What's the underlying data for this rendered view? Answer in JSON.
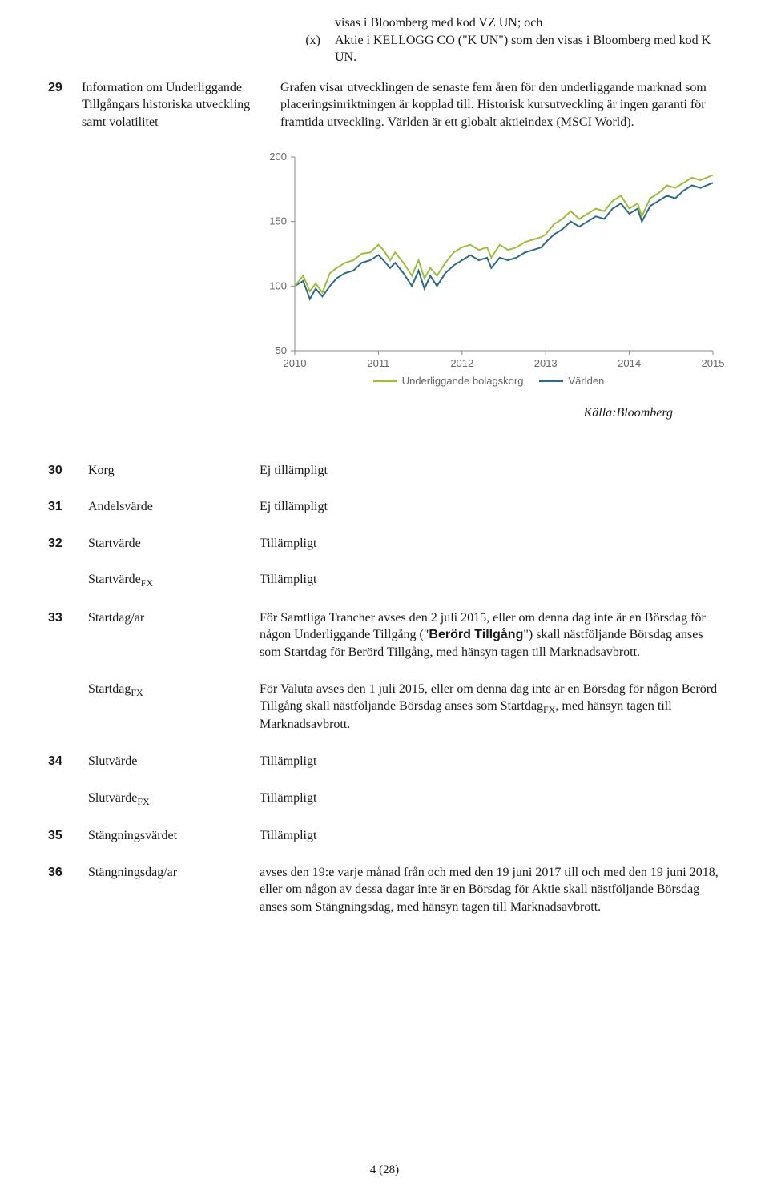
{
  "top": {
    "x_marker": "(x)",
    "line1": "visas i Bloomberg med kod VZ UN; och",
    "line2": "Aktie i KELLOGG CO (\"K UN\") som den visas i Bloomberg med kod K UN."
  },
  "row29": {
    "num": "29",
    "left": "Information om Underliggande Tillgångars historiska utveckling samt volatilitet",
    "right": "Grafen visar utvecklingen de senaste fem åren för den underliggande marknad som placeringsinriktningen är kopplad till. Historisk kursutveckling är ingen garanti för framtida utveckling. Världen är ett globalt aktieindex (MSCI World)."
  },
  "chart": {
    "ylim": [
      50,
      200
    ],
    "yticks": [
      50,
      100,
      150,
      200
    ],
    "xticks": [
      "2010",
      "2011",
      "2012",
      "2013",
      "2014",
      "2015"
    ],
    "series1_label": "Underliggande bolagskorg",
    "series2_label": "Världen",
    "series1_color": "#9bbf3b",
    "series2_color": "#2d6b85",
    "axis_color": "#888888",
    "tick_font": 13,
    "bg": "#ffffff",
    "line_width": 2,
    "series1": [
      [
        0,
        100
      ],
      [
        0.1,
        108
      ],
      [
        0.18,
        96
      ],
      [
        0.25,
        102
      ],
      [
        0.33,
        95
      ],
      [
        0.42,
        110
      ],
      [
        0.5,
        114
      ],
      [
        0.6,
        118
      ],
      [
        0.7,
        120
      ],
      [
        0.8,
        125
      ],
      [
        0.9,
        126
      ],
      [
        1.0,
        132
      ],
      [
        1.06,
        128
      ],
      [
        1.14,
        120
      ],
      [
        1.2,
        126
      ],
      [
        1.3,
        118
      ],
      [
        1.4,
        108
      ],
      [
        1.48,
        120
      ],
      [
        1.55,
        106
      ],
      [
        1.62,
        114
      ],
      [
        1.7,
        108
      ],
      [
        1.8,
        118
      ],
      [
        1.9,
        126
      ],
      [
        2.0,
        130
      ],
      [
        2.1,
        132
      ],
      [
        2.2,
        128
      ],
      [
        2.3,
        130
      ],
      [
        2.35,
        122
      ],
      [
        2.45,
        132
      ],
      [
        2.55,
        128
      ],
      [
        2.65,
        130
      ],
      [
        2.75,
        134
      ],
      [
        2.85,
        136
      ],
      [
        2.95,
        138
      ],
      [
        3.0,
        140
      ],
      [
        3.1,
        148
      ],
      [
        3.2,
        152
      ],
      [
        3.3,
        158
      ],
      [
        3.4,
        152
      ],
      [
        3.5,
        156
      ],
      [
        3.6,
        160
      ],
      [
        3.7,
        158
      ],
      [
        3.8,
        166
      ],
      [
        3.9,
        170
      ],
      [
        4.0,
        160
      ],
      [
        4.1,
        164
      ],
      [
        4.15,
        154
      ],
      [
        4.25,
        168
      ],
      [
        4.35,
        172
      ],
      [
        4.45,
        178
      ],
      [
        4.55,
        176
      ],
      [
        4.65,
        180
      ],
      [
        4.75,
        184
      ],
      [
        4.85,
        182
      ],
      [
        5.0,
        186
      ]
    ],
    "series2": [
      [
        0,
        100
      ],
      [
        0.1,
        104
      ],
      [
        0.18,
        90
      ],
      [
        0.25,
        98
      ],
      [
        0.33,
        92
      ],
      [
        0.42,
        100
      ],
      [
        0.5,
        106
      ],
      [
        0.6,
        110
      ],
      [
        0.7,
        112
      ],
      [
        0.8,
        118
      ],
      [
        0.9,
        120
      ],
      [
        1.0,
        124
      ],
      [
        1.06,
        120
      ],
      [
        1.14,
        114
      ],
      [
        1.2,
        118
      ],
      [
        1.3,
        110
      ],
      [
        1.4,
        100
      ],
      [
        1.48,
        112
      ],
      [
        1.55,
        98
      ],
      [
        1.62,
        108
      ],
      [
        1.7,
        100
      ],
      [
        1.8,
        110
      ],
      [
        1.9,
        116
      ],
      [
        2.0,
        120
      ],
      [
        2.1,
        124
      ],
      [
        2.2,
        120
      ],
      [
        2.3,
        122
      ],
      [
        2.35,
        114
      ],
      [
        2.45,
        122
      ],
      [
        2.55,
        120
      ],
      [
        2.65,
        122
      ],
      [
        2.75,
        126
      ],
      [
        2.85,
        128
      ],
      [
        2.95,
        130
      ],
      [
        3.0,
        134
      ],
      [
        3.1,
        140
      ],
      [
        3.2,
        144
      ],
      [
        3.3,
        150
      ],
      [
        3.4,
        146
      ],
      [
        3.5,
        150
      ],
      [
        3.6,
        154
      ],
      [
        3.7,
        152
      ],
      [
        3.8,
        160
      ],
      [
        3.9,
        164
      ],
      [
        4.0,
        156
      ],
      [
        4.1,
        160
      ],
      [
        4.15,
        150
      ],
      [
        4.25,
        162
      ],
      [
        4.35,
        166
      ],
      [
        4.45,
        170
      ],
      [
        4.55,
        168
      ],
      [
        4.65,
        174
      ],
      [
        4.75,
        178
      ],
      [
        4.85,
        176
      ],
      [
        5.0,
        180
      ]
    ]
  },
  "source": "Källa:Bloomberg",
  "rows": {
    "r30": {
      "n": "30",
      "l": "Korg",
      "v": "Ej tillämpligt"
    },
    "r31": {
      "n": "31",
      "l": "Andelsvärde",
      "v": "Ej tillämpligt"
    },
    "r32": {
      "n": "32",
      "l": "Startvärde",
      "v": "Tillämpligt"
    },
    "r32b": {
      "l": "Startvärde",
      "sub": "FX",
      "v": "Tillämpligt"
    },
    "r33": {
      "n": "33",
      "l": "Startdag/ar",
      "v": "För Samtliga Trancher avses den 2 juli 2015, eller om denna dag inte är en Börsdag för någon Underliggande Tillgång (\"",
      "bold": "Berörd Tillgång",
      "v2": "\") skall nästföljande Börsdag anses som Startdag för Berörd Tillgång, med hänsyn tagen till Marknadsavbrott."
    },
    "r33b": {
      "l": "Startdag",
      "sub": "FX",
      "v": "För Valuta avses den 1 juli 2015, eller om denna dag inte är en Börsdag för någon Berörd Tillgång skall nästföljande Börsdag anses som Startdag",
      "sub2": "FX",
      "v2": ", med hänsyn tagen till Marknadsavbrott."
    },
    "r34": {
      "n": "34",
      "l": "Slutvärde",
      "v": "Tillämpligt"
    },
    "r34b": {
      "l": "Slutvärde",
      "sub": "FX",
      "v": "Tillämpligt"
    },
    "r35": {
      "n": "35",
      "l": "Stängningsvärdet",
      "v": "Tillämpligt"
    },
    "r36": {
      "n": "36",
      "l": "Stängningsdag/ar",
      "v": "avses den 19:e varje månad från och med den 19 juni 2017 till och med den 19 juni 2018, eller om någon av dessa dagar inte är en Börsdag för Aktie skall nästföljande Börsdag anses som Stängningsdag, med hänsyn tagen till Marknadsavbrott."
    }
  },
  "footer": "4 (28)"
}
